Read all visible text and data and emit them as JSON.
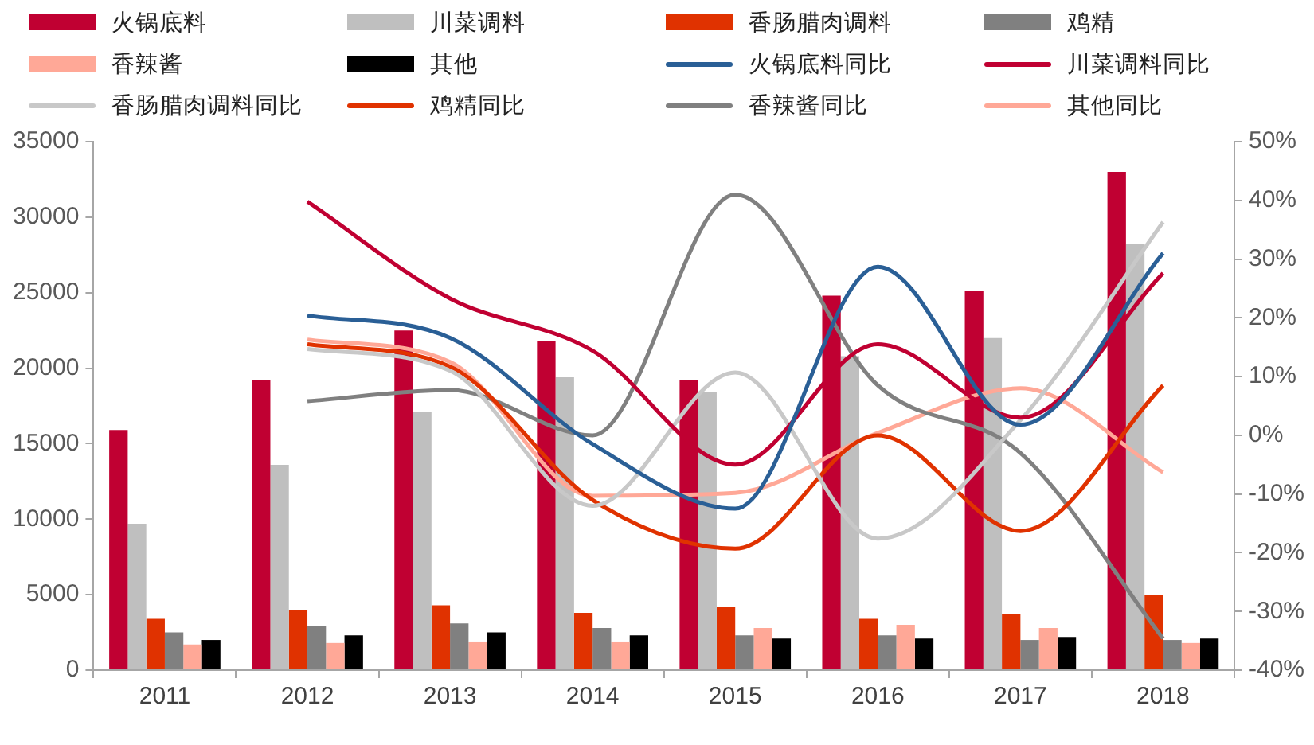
{
  "chart_data": {
    "type": "bar",
    "categories": [
      "2011",
      "2012",
      "2013",
      "2014",
      "2015",
      "2016",
      "2017",
      "2018"
    ],
    "series": [
      {
        "name": "火锅底料",
        "color": "#c00032",
        "values": [
          15900,
          19200,
          22500,
          21800,
          19200,
          24800,
          25100,
          33000
        ]
      },
      {
        "name": "川菜调料",
        "color": "#bfbfbf",
        "values": [
          9700,
          13600,
          17100,
          19400,
          18400,
          20800,
          22000,
          28200
        ]
      },
      {
        "name": "香肠腊肉调料",
        "color": "#e03200",
        "values": [
          3400,
          4000,
          4300,
          3800,
          4200,
          3400,
          3700,
          5000
        ]
      },
      {
        "name": "鸡精",
        "color": "#808080",
        "values": [
          2500,
          2900,
          3100,
          2800,
          2300,
          2300,
          2000,
          2000
        ]
      },
      {
        "name": "香辣酱",
        "color": "#ffa897",
        "values": [
          1700,
          1800,
          1900,
          1900,
          2800,
          3000,
          2800,
          1800
        ]
      },
      {
        "name": "其他",
        "color": "#000000",
        "values": [
          2000,
          2300,
          2500,
          2300,
          2100,
          2100,
          2200,
          2100
        ]
      },
      {
        "name": "火锅底料同比",
        "type": "line",
        "axis": "y2",
        "color": "#2a5f96",
        "values": [
          null,
          20.4,
          16.6,
          -1.5,
          -12.5,
          28.7,
          1.8,
          31
        ]
      },
      {
        "name": "川菜调料同比",
        "type": "line",
        "axis": "y2",
        "color": "#c00032",
        "values": [
          null,
          39.8,
          23.3,
          14.4,
          -5,
          15.5,
          3,
          27.6
        ]
      },
      {
        "name": "香肠腊肉调料同比",
        "type": "line",
        "axis": "y2",
        "color": "#c8c8c8",
        "values": [
          null,
          14.7,
          11,
          -12,
          10.7,
          -17.6,
          2.6,
          36.3
        ]
      },
      {
        "name": "鸡精同比",
        "type": "line",
        "axis": "y2",
        "color": "#e03200",
        "values": [
          null,
          15.5,
          11.7,
          -11,
          -19.3,
          0,
          -16.3,
          8.5
        ]
      },
      {
        "name": "香辣酱同比",
        "type": "line",
        "axis": "y2",
        "color": "#808080",
        "values": [
          null,
          5.8,
          7.7,
          0,
          41,
          8.5,
          -3,
          -34.6
        ]
      },
      {
        "name": "其他同比",
        "type": "line",
        "axis": "y2",
        "color": "#ffa897",
        "values": [
          null,
          16.3,
          12.5,
          -10.3,
          -9.8,
          0.4,
          8,
          -6.3
        ]
      }
    ],
    "ylim": [
      0,
      35000
    ],
    "yticks": [
      0,
      5000,
      10000,
      15000,
      20000,
      25000,
      30000,
      35000
    ],
    "y2lim": [
      -40,
      50
    ],
    "y2ticks": [
      {
        "value": -40,
        "label": "-40%"
      },
      {
        "value": -30,
        "label": "-30%"
      },
      {
        "value": -20,
        "label": "-20%"
      },
      {
        "value": -10,
        "label": "-10%"
      },
      {
        "value": 0,
        "label": "0%"
      },
      {
        "value": 10,
        "label": "10%"
      },
      {
        "value": 20,
        "label": "20%"
      },
      {
        "value": 30,
        "label": "30%"
      },
      {
        "value": 40,
        "label": "40%"
      },
      {
        "value": 50,
        "label": "50%"
      }
    ],
    "grid": false,
    "legend": "top",
    "marker": "none",
    "line_style": "solid"
  }
}
